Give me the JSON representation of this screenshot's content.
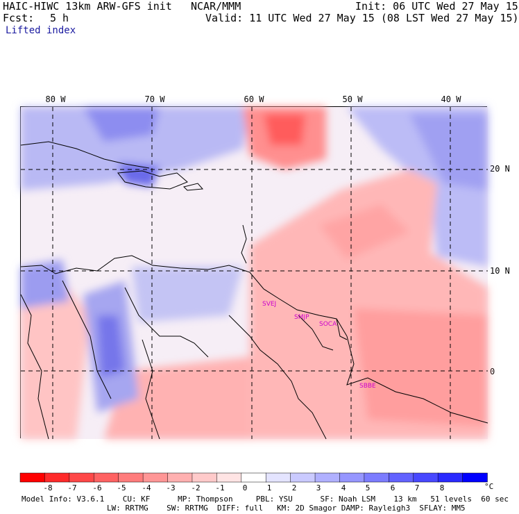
{
  "header": {
    "model_line": "HAIC-HIWC 13km ARW-GFS init",
    "org": "NCAR/MMM",
    "init": "Init: 06 UTC Wed 27 May 15",
    "fcst_label": "Fcst:",
    "fcst_value": "5 h",
    "valid": "Valid: 11 UTC Wed 27 May 15 (08 LST Wed 27 May 15)",
    "field": "Lifted index"
  },
  "map": {
    "lon_labels": [
      "80 W",
      "70 W",
      "60 W",
      "50 W",
      "40 W"
    ],
    "lat_labels": [
      "20 N",
      "10 N",
      "0"
    ],
    "stations": [
      "SVEJ",
      "SMJP",
      "SOCA",
      "SBBE"
    ],
    "station_color": "#cc00cc"
  },
  "colorbar": {
    "labels": [
      "-8",
      "-7",
      "-6",
      "-5",
      "-4",
      "-3",
      "-2",
      "-1",
      "0",
      "1",
      "2",
      "3",
      "4",
      "5",
      "6",
      "7",
      "8"
    ],
    "unit": "°C",
    "colors": [
      "#ff0000",
      "#ff2a2a",
      "#ff4848",
      "#ff6262",
      "#ff7c7c",
      "#ff9696",
      "#ffb0b0",
      "#ffcaca",
      "#ffe4e4",
      "#ffffff",
      "#e4e4ff",
      "#cacaff",
      "#b0b0ff",
      "#9696ff",
      "#7c7cff",
      "#6262ff",
      "#4848ff",
      "#2a2aff",
      "#0000ff"
    ]
  },
  "footer": {
    "line1": "Model Info: V3.6.1    CU: KF      MP: Thompson     PBL: YSU      SF: Noah LSM    13 km   51 levels  60 sec",
    "line2": "LW: RRTMG    SW: RRTMG  DIFF: full   KM: 2D Smagor DAMP: Rayleigh3  SFLAY: MM5"
  }
}
